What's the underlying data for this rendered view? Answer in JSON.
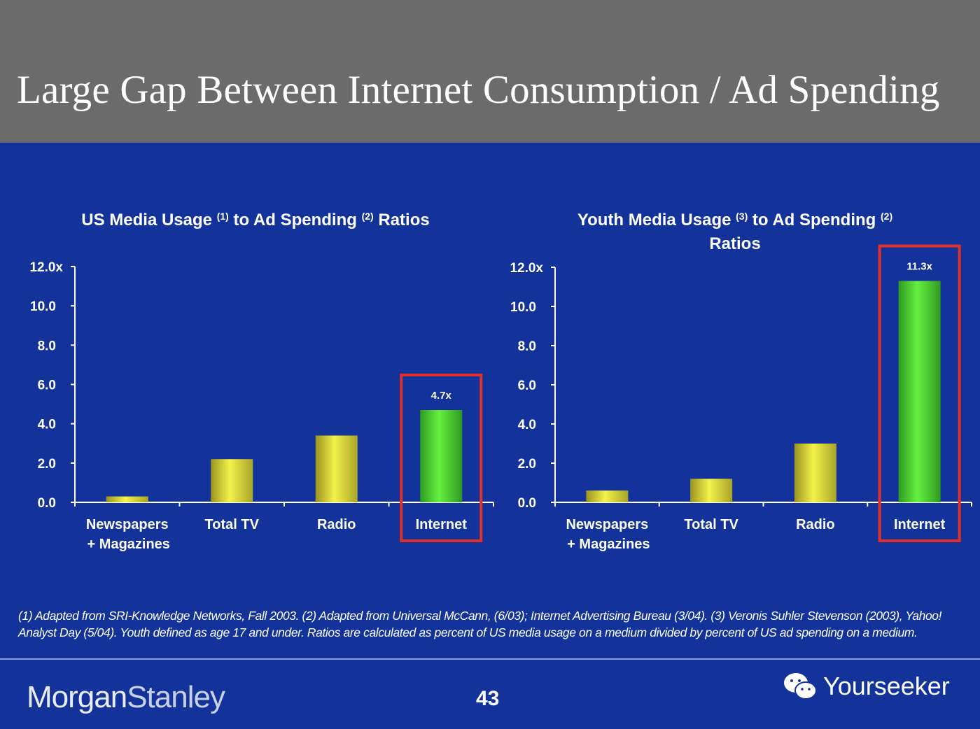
{
  "header": {
    "title": "Large Gap Between Internet Consumption / Ad Spending"
  },
  "chart_data": [
    {
      "type": "bar",
      "title_parts": {
        "a": "US Media Usage ",
        "sup1": "(1)",
        "b": " to Ad Spending ",
        "sup2": "(2)",
        "c": " Ratios"
      },
      "categories": [
        "Newspapers\n+ Magazines",
        "Total TV",
        "Radio",
        "Internet"
      ],
      "values": [
        0.3,
        2.2,
        3.4,
        4.7
      ],
      "data_labels": [
        null,
        null,
        null,
        "4.7x"
      ],
      "highlight": "Internet",
      "yticks": [
        "0.0",
        "2.0",
        "4.0",
        "6.0",
        "8.0",
        "10.0",
        "12.0x"
      ],
      "ylim": [
        0,
        12
      ],
      "grid": false,
      "colors": {
        "bar": "#e4e23a",
        "highlight_bar": "#5ee33a",
        "highlight_box": "#e0302c"
      }
    },
    {
      "type": "bar",
      "title_parts": {
        "a": "Youth Media Usage ",
        "sup1": "(3)",
        "b": " to Ad Spending ",
        "sup2": "(2)",
        "c": "Ratios"
      },
      "categories": [
        "Newspapers\n+ Magazines",
        "Total TV",
        "Radio",
        "Internet"
      ],
      "values": [
        0.6,
        1.2,
        3.0,
        11.3
      ],
      "data_labels": [
        null,
        null,
        null,
        "11.3x"
      ],
      "highlight": "Internet",
      "yticks": [
        "0.0",
        "2.0",
        "4.0",
        "6.0",
        "8.0",
        "10.0",
        "12.0x"
      ],
      "ylim": [
        0,
        12
      ],
      "grid": false,
      "colors": {
        "bar": "#e4e23a",
        "highlight_bar": "#5ee33a",
        "highlight_box": "#e0302c"
      }
    }
  ],
  "footnote": "(1) Adapted from SRI-Knowledge Networks, Fall 2003.  (2) Adapted from Universal McCann, (6/03); Internet Advertising Bureau (3/04). (3) Veronis Suhler Stevenson (2003), Yahoo! Analyst Day (5/04).  Youth defined as age 17 and under.  Ratios are calculated as percent of US media usage on a medium divided by percent of US ad spending on a medium.",
  "footer": {
    "logo_a": "Morgan",
    "logo_b": "Stanley",
    "page_number": "43",
    "watermark": "Yourseeker",
    "watermark_icon": "wechat-icon"
  }
}
